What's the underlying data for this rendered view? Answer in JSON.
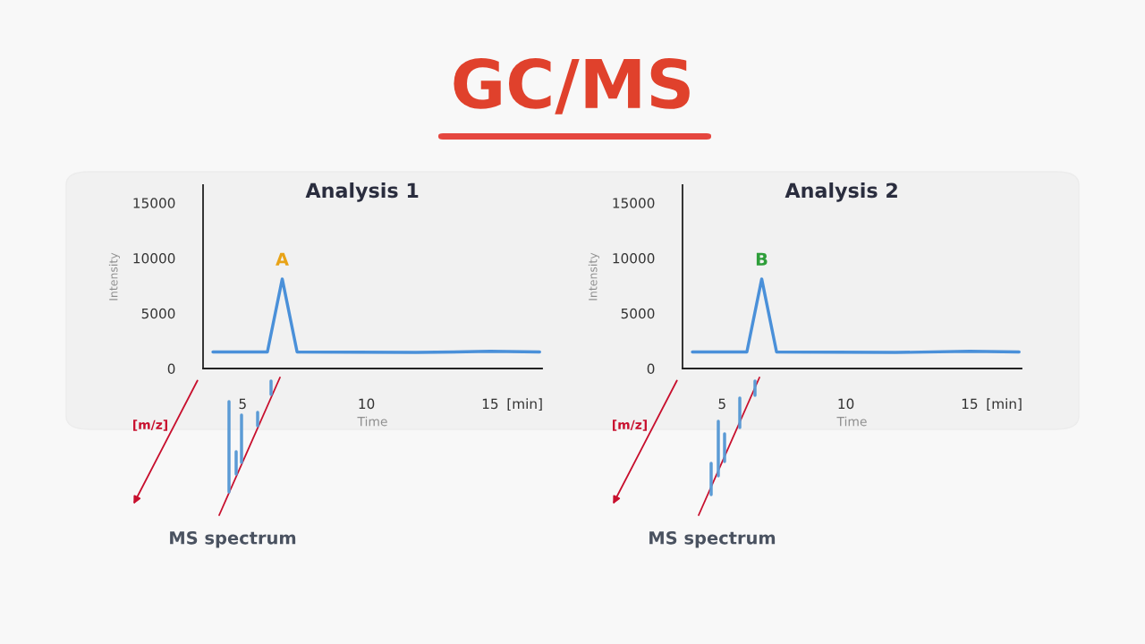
{
  "chart_data": [
    {
      "type": "other",
      "title": "GC/MS"
    },
    {
      "type": "line",
      "title": "Analysis 1",
      "xlabel": "Time",
      "ylabel": "Intensity",
      "x": [
        3.8,
        6.0,
        6.6,
        7.2,
        12,
        15,
        17
      ],
      "series": [
        {
          "color": "#4a90d9",
          "values": [
            1500,
            1500,
            8100,
            1500,
            1450,
            1550,
            1500
          ]
        }
      ],
      "xlim": [
        3.4,
        17.1
      ],
      "xticks": [
        5,
        10,
        15,
        {
          "value": 16.4,
          "label": "[min]"
        }
      ],
      "ylim": [
        0,
        16600
      ],
      "yticks": [
        0,
        5000,
        10000,
        15000
      ],
      "grid": false,
      "legend": false,
      "marker": "none",
      "line_style": "solid",
      "annotations": [
        {
          "text": "A",
          "x": 6.6,
          "y": 8100
        },
        "[m/z]",
        "MS spectrum"
      ]
    },
    {
      "type": "line",
      "title": "Analysis 2",
      "xlabel": "Time",
      "ylabel": "Intensity",
      "x": [
        3.8,
        6.0,
        6.6,
        7.2,
        12,
        15,
        17
      ],
      "series": [
        {
          "color": "#4a90d9",
          "values": [
            1500,
            1500,
            8100,
            1500,
            1450,
            1550,
            1500
          ]
        }
      ],
      "xlim": [
        3.4,
        17.1
      ],
      "xticks": [
        5,
        10,
        15,
        {
          "value": 16.4,
          "label": "[min]"
        }
      ],
      "ylim": [
        0,
        16600
      ],
      "yticks": [
        0,
        5000,
        10000,
        15000
      ],
      "grid": false,
      "legend": false,
      "marker": "none",
      "line_style": "solid",
      "annotations": [
        {
          "text": "B",
          "x": 6.6,
          "y": 8100
        },
        "[m/z]",
        "MS spectrum"
      ]
    }
  ]
}
